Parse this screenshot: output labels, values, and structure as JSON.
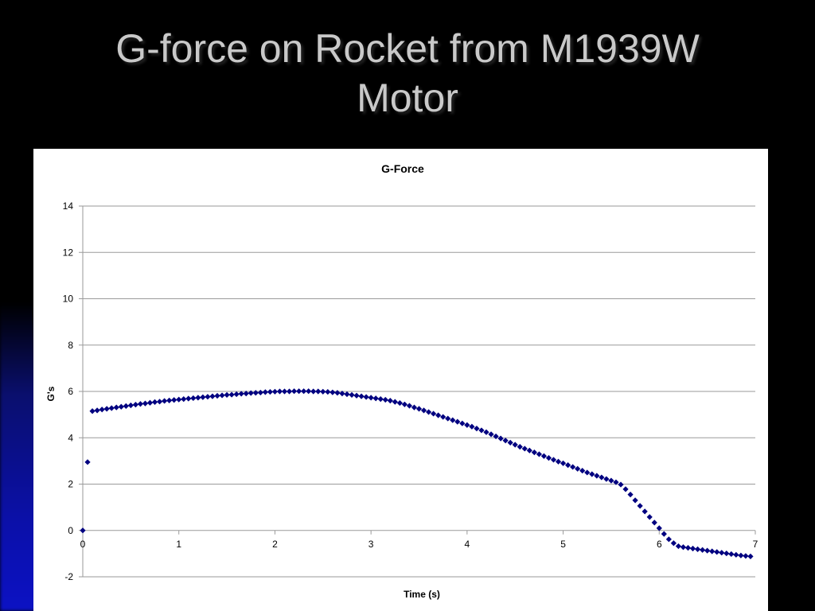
{
  "slide": {
    "title": "G-force on Rocket from M1939W\nMotor"
  },
  "colors": {
    "background": "#000000",
    "title_text": "#c9c9c9",
    "chart_background": "#ffffff",
    "marker": "#000080",
    "gridline": "#9a9a9a"
  },
  "chart_data": {
    "type": "scatter",
    "title": "G-Force",
    "xlabel": "Time (s)",
    "ylabel": "G's",
    "xlim": [
      0,
      7
    ],
    "ylim": [
      -2,
      14
    ],
    "xticks": [
      0,
      1,
      2,
      3,
      4,
      5,
      6,
      7
    ],
    "yticks": [
      -2,
      0,
      2,
      4,
      6,
      8,
      10,
      12,
      14
    ],
    "grid": "horizontal",
    "legend": "none",
    "marker": "diamond",
    "series": [
      {
        "x": [
          0,
          0.05,
          0.1,
          0.15,
          0.2,
          0.25,
          0.3,
          0.35,
          0.4,
          0.45,
          0.5,
          0.55,
          0.6,
          0.65,
          0.7,
          0.75,
          0.8,
          0.85,
          0.9,
          0.95,
          1.0,
          1.05,
          1.1,
          1.15,
          1.2,
          1.25,
          1.3,
          1.35,
          1.4,
          1.45,
          1.5,
          1.55,
          1.6,
          1.65,
          1.7,
          1.75,
          1.8,
          1.85,
          1.9,
          1.95,
          2.0,
          2.05,
          2.1,
          2.15,
          2.2,
          2.25,
          2.3,
          2.35,
          2.4,
          2.45,
          2.5,
          2.55,
          2.6,
          2.65,
          2.7,
          2.75,
          2.8,
          2.85,
          2.9,
          2.95,
          3.0,
          3.05,
          3.1,
          3.15,
          3.2,
          3.25,
          3.3,
          3.35,
          3.4,
          3.45,
          3.5,
          3.55,
          3.6,
          3.65,
          3.7,
          3.75,
          3.8,
          3.85,
          3.9,
          3.95,
          4.0,
          4.05,
          4.1,
          4.15,
          4.2,
          4.25,
          4.3,
          4.35,
          4.4,
          4.45,
          4.5,
          4.55,
          4.6,
          4.65,
          4.7,
          4.75,
          4.8,
          4.85,
          4.9,
          4.95,
          5.0,
          5.05,
          5.1,
          5.15,
          5.2,
          5.25,
          5.3,
          5.35,
          5.4,
          5.45,
          5.5,
          5.55,
          5.6,
          5.65,
          5.7,
          5.75,
          5.8,
          5.85,
          5.9,
          5.95,
          6.0,
          6.05,
          6.1,
          6.15,
          6.2,
          6.25,
          6.3,
          6.35,
          6.4,
          6.45,
          6.5,
          6.55,
          6.6,
          6.65,
          6.7,
          6.75,
          6.8,
          6.85,
          6.9,
          6.95
        ],
        "y": [
          0,
          2.95,
          5.15,
          5.18,
          5.22,
          5.25,
          5.28,
          5.31,
          5.34,
          5.37,
          5.4,
          5.43,
          5.46,
          5.48,
          5.51,
          5.54,
          5.56,
          5.59,
          5.61,
          5.63,
          5.65,
          5.67,
          5.69,
          5.71,
          5.73,
          5.75,
          5.77,
          5.79,
          5.81,
          5.83,
          5.85,
          5.86,
          5.88,
          5.9,
          5.91,
          5.93,
          5.94,
          5.95,
          5.97,
          5.98,
          5.99,
          6.0,
          6.0,
          6.0,
          6.01,
          6.01,
          6.01,
          6.01,
          6.0,
          6.0,
          5.99,
          5.98,
          5.96,
          5.94,
          5.91,
          5.88,
          5.85,
          5.82,
          5.79,
          5.76,
          5.73,
          5.7,
          5.67,
          5.64,
          5.6,
          5.55,
          5.5,
          5.44,
          5.38,
          5.31,
          5.25,
          5.18,
          5.11,
          5.04,
          4.97,
          4.9,
          4.83,
          4.76,
          4.69,
          4.62,
          4.55,
          4.48,
          4.4,
          4.32,
          4.24,
          4.15,
          4.06,
          3.97,
          3.88,
          3.79,
          3.7,
          3.61,
          3.53,
          3.45,
          3.37,
          3.29,
          3.21,
          3.13,
          3.05,
          2.97,
          2.9,
          2.82,
          2.74,
          2.66,
          2.58,
          2.5,
          2.43,
          2.36,
          2.29,
          2.22,
          2.15,
          2.08,
          1.98,
          1.78,
          1.55,
          1.3,
          1.06,
          0.82,
          0.58,
          0.34,
          0.1,
          -0.15,
          -0.38,
          -0.55,
          -0.68,
          -0.72,
          -0.75,
          -0.78,
          -0.81,
          -0.84,
          -0.87,
          -0.9,
          -0.93,
          -0.96,
          -0.99,
          -1.02,
          -1.05,
          -1.08,
          -1.1,
          -1.12
        ]
      }
    ]
  }
}
